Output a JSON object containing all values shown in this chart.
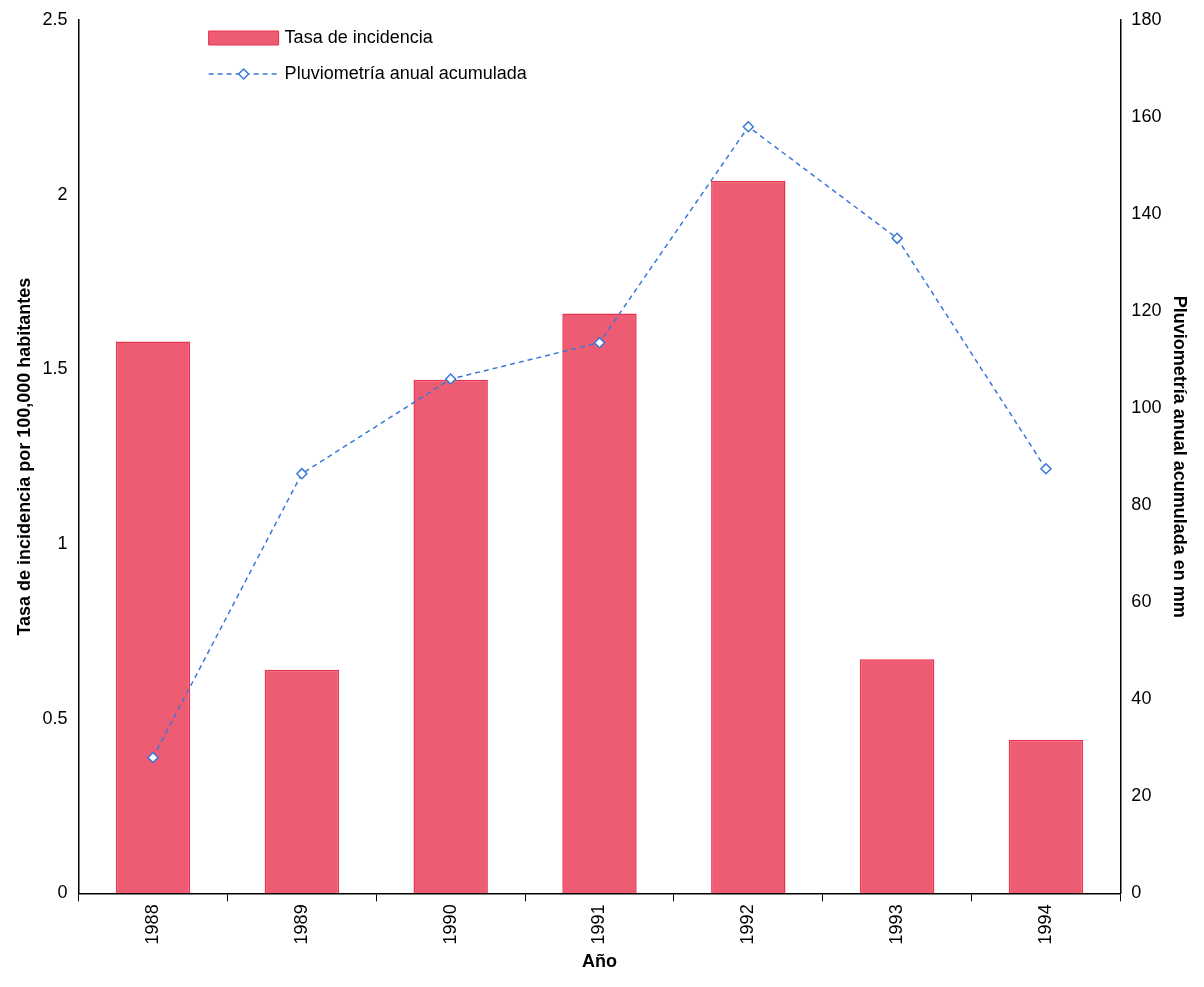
{
  "chart_data": {
    "type": "bar",
    "xlabel": "Año",
    "ylabel": "Tasa de incidencia por 100,000 habitantes",
    "y2label": "Pluviometría anual acumulada en mm",
    "categories": [
      "1988",
      "1989",
      "1990",
      "1991",
      "1992",
      "1993",
      "1994"
    ],
    "series": [
      {
        "name": "Tasa de incidencia",
        "color": "#e8334f",
        "values": [
          1.58,
          0.64,
          1.47,
          1.66,
          2.04,
          0.67,
          0.44
        ]
      },
      {
        "name": "Pluviometría anual acumulada",
        "type": "line",
        "axis": "y2",
        "color": "#3a78d8",
        "marker": "diamond",
        "line_style": "dashed",
        "values": [
          28,
          86.5,
          106,
          113.5,
          158,
          135,
          87.5
        ]
      }
    ],
    "ylim": [
      0,
      2.5
    ],
    "yticks": [
      0,
      0.5,
      1,
      1.5,
      2,
      2.5
    ],
    "y2lim": [
      0,
      180
    ],
    "y2ticks": [
      0,
      20,
      40,
      60,
      80,
      100,
      120,
      140,
      160,
      180
    ],
    "grid": false,
    "legend": "top left"
  }
}
